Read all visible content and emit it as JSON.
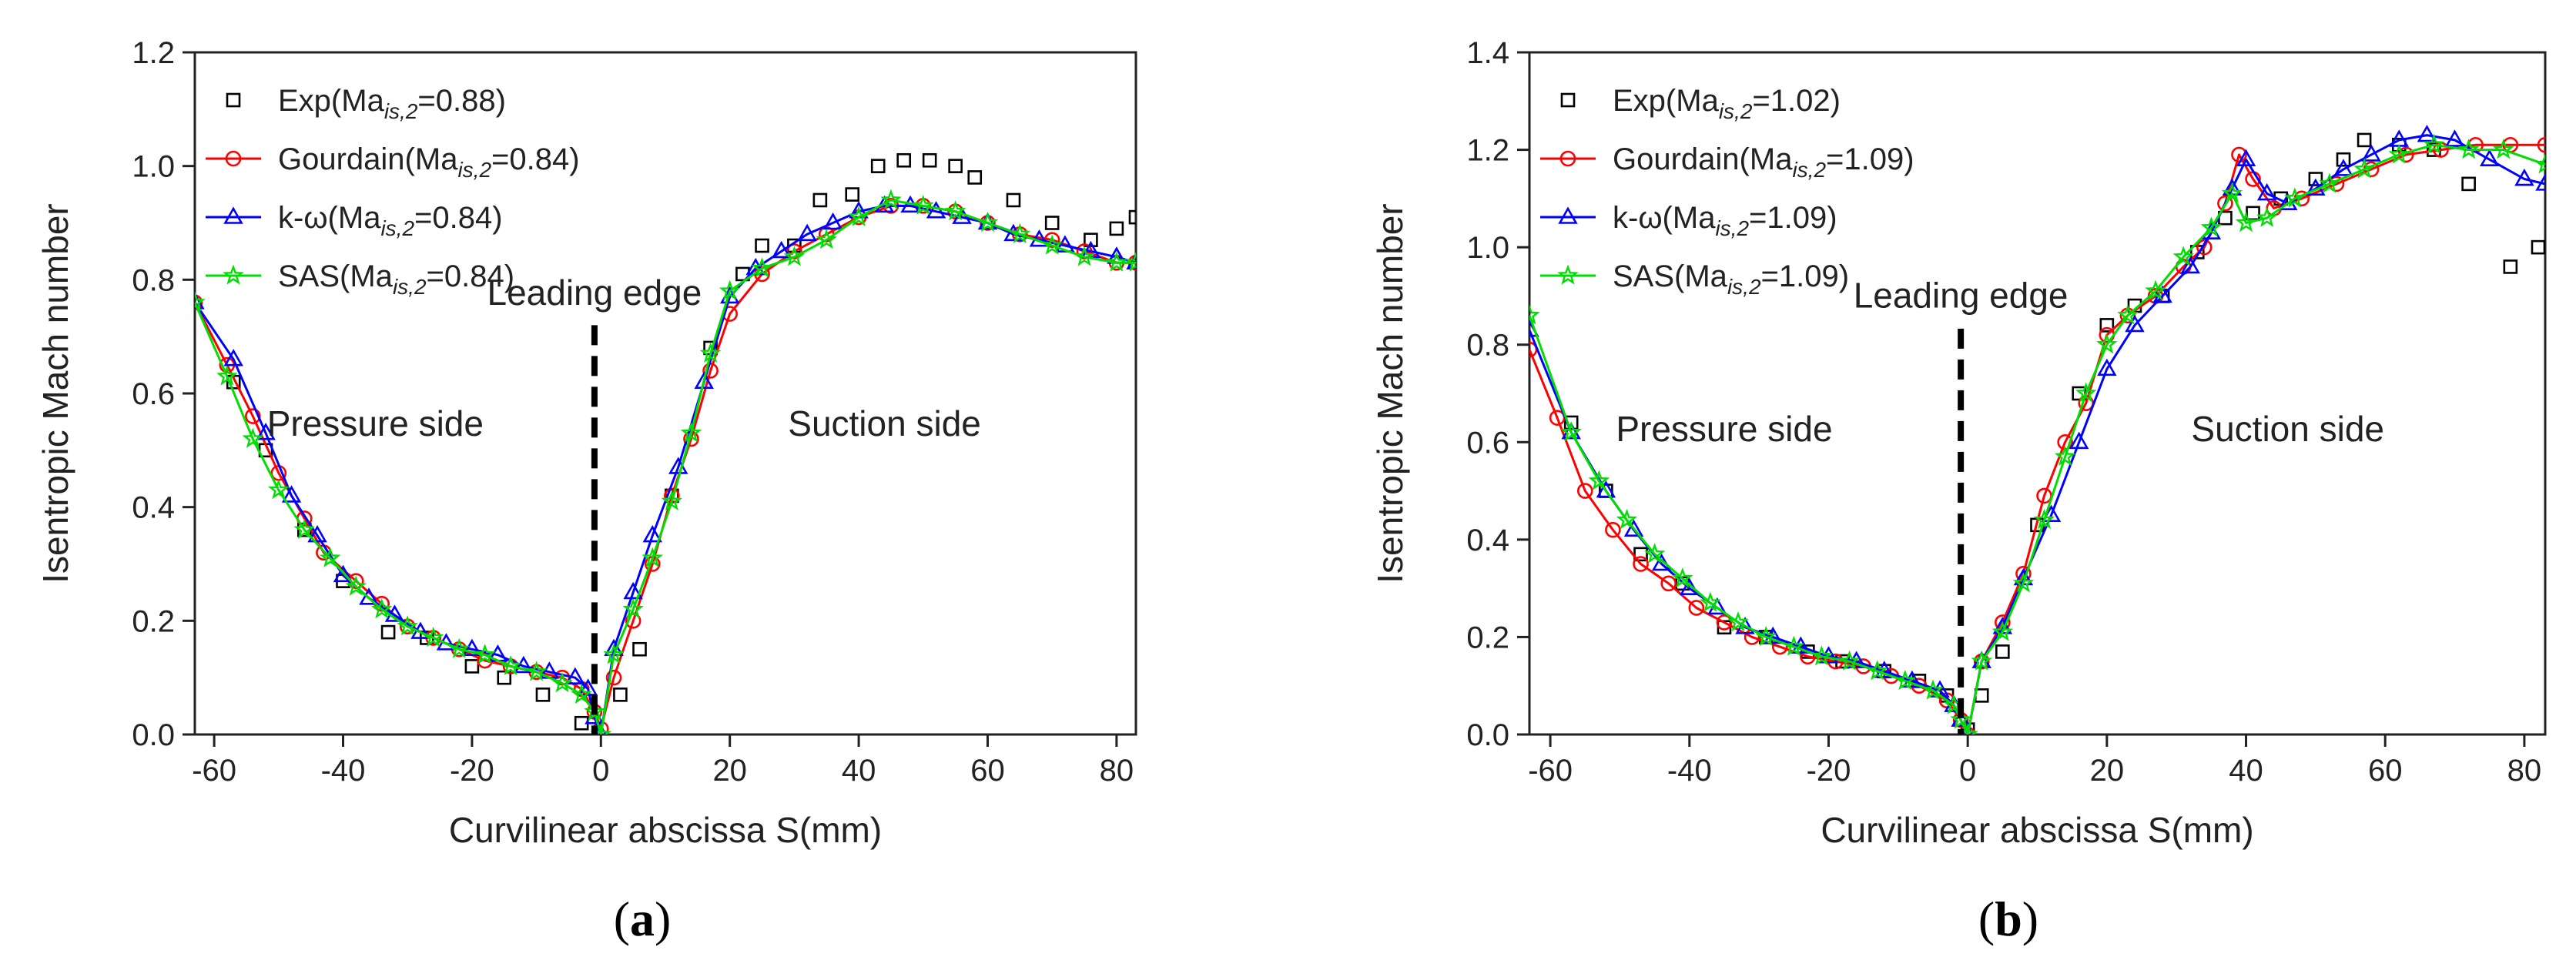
{
  "panels": [
    {
      "caption_letter": "a",
      "xlabel": "Curvilinear abscissa S(mm)",
      "ylabel": "Isentropic Mach number",
      "annotations": {
        "leading_edge": "Leading edge",
        "pressure_side": "Pressure side",
        "suction_side": "Suction side"
      },
      "legend": [
        {
          "base": "Exp(Ma",
          "sub": "is,2",
          "tail": "=0.88)"
        },
        {
          "base": "Gourdain(Ma",
          "sub": "is,2",
          "tail": "=0.84)"
        },
        {
          "base": "k-ω(Ma",
          "sub": "is,2",
          "tail": "=0.84)"
        },
        {
          "base": "SAS(Ma",
          "sub": "is,2",
          "tail": "=0.84)"
        }
      ]
    },
    {
      "caption_letter": "b",
      "xlabel": "Curvilinear abscissa S(mm)",
      "ylabel": "Isentropic Mach number",
      "annotations": {
        "leading_edge": "Leading edge",
        "pressure_side": "Pressure side",
        "suction_side": "Suction side"
      },
      "legend": [
        {
          "base": "Exp(Ma",
          "sub": "is,2",
          "tail": "=1.02)"
        },
        {
          "base": "Gourdain(Ma",
          "sub": "is,2",
          "tail": "=1.09)"
        },
        {
          "base": "k-ω(Ma",
          "sub": "is,2",
          "tail": "=1.09)"
        },
        {
          "base": "SAS(Ma",
          "sub": "is,2",
          "tail": "=1.09)"
        }
      ]
    }
  ],
  "chart_data": [
    {
      "type": "line",
      "xlabel": "Curvilinear abscissa S(mm)",
      "ylabel": "Isentropic Mach number",
      "xlim": [
        -63,
        83
      ],
      "ylim": [
        0.0,
        1.2
      ],
      "xticks": [
        -60,
        -40,
        -20,
        0,
        20,
        40,
        60,
        80
      ],
      "yticks": [
        0.0,
        0.2,
        0.4,
        0.6,
        0.8,
        1.0,
        1.2
      ],
      "legend_position": "top-left",
      "leading_edge_x": -1,
      "series": [
        {
          "name": "Exp(Ma is,2=0.88)",
          "style": "markers",
          "marker": "square",
          "color": "#000000",
          "x": [
            -57,
            -52,
            -46,
            -40,
            -33,
            -27,
            -20,
            -15,
            -9,
            -3,
            3,
            6,
            11,
            17,
            22,
            25,
            30,
            34,
            39,
            43,
            47,
            51,
            55,
            58,
            64,
            70,
            76,
            80,
            83
          ],
          "y": [
            0.62,
            0.5,
            0.36,
            0.27,
            0.18,
            0.17,
            0.12,
            0.1,
            0.07,
            0.02,
            0.07,
            0.15,
            0.42,
            0.68,
            0.81,
            0.86,
            0.86,
            0.94,
            0.95,
            1.0,
            1.01,
            1.01,
            1.0,
            0.98,
            0.94,
            0.9,
            0.87,
            0.89,
            0.91
          ]
        },
        {
          "name": "Gourdain(Ma is,2=0.84)",
          "style": "line+markers",
          "marker": "circle",
          "color": "#ff0000",
          "x": [
            -63,
            -58,
            -54,
            -50,
            -46,
            -43,
            -38,
            -34,
            -30,
            -26,
            -22,
            -18,
            -14,
            -10,
            -6,
            -3,
            -1,
            0,
            2,
            5,
            8,
            11,
            14,
            17,
            20,
            25,
            30,
            35,
            40,
            45,
            50,
            55,
            60,
            65,
            70,
            75,
            80,
            83
          ],
          "y": [
            0.76,
            0.65,
            0.56,
            0.46,
            0.38,
            0.32,
            0.27,
            0.23,
            0.19,
            0.17,
            0.15,
            0.13,
            0.12,
            0.11,
            0.1,
            0.08,
            0.04,
            0.01,
            0.1,
            0.2,
            0.3,
            0.42,
            0.52,
            0.64,
            0.74,
            0.81,
            0.85,
            0.88,
            0.91,
            0.93,
            0.93,
            0.92,
            0.9,
            0.88,
            0.87,
            0.85,
            0.83,
            0.83
          ]
        },
        {
          "name": "k-ω(Ma is,2=0.84)",
          "style": "line+markers",
          "marker": "triangle",
          "color": "#0000ff",
          "x": [
            -63,
            -57,
            -52,
            -48,
            -44,
            -40,
            -36,
            -32,
            -28,
            -24,
            -20,
            -16,
            -12,
            -8,
            -4,
            -2,
            -1,
            0,
            2,
            5,
            8,
            12,
            16,
            20,
            24,
            28,
            32,
            36,
            40,
            44,
            48,
            52,
            56,
            60,
            64,
            68,
            72,
            76,
            80,
            83
          ],
          "y": [
            0.76,
            0.66,
            0.53,
            0.42,
            0.35,
            0.28,
            0.24,
            0.21,
            0.18,
            0.16,
            0.15,
            0.14,
            0.12,
            0.11,
            0.1,
            0.08,
            0.03,
            0.0,
            0.15,
            0.25,
            0.35,
            0.47,
            0.62,
            0.77,
            0.82,
            0.85,
            0.88,
            0.9,
            0.92,
            0.93,
            0.93,
            0.92,
            0.91,
            0.9,
            0.88,
            0.87,
            0.86,
            0.85,
            0.84,
            0.83
          ]
        },
        {
          "name": "SAS(Ma is,2=0.84)",
          "style": "line+markers",
          "marker": "star",
          "color": "#00dd00",
          "x": [
            -63,
            -58,
            -54,
            -50,
            -46,
            -42,
            -38,
            -34,
            -30,
            -26,
            -22,
            -18,
            -14,
            -10,
            -6,
            -3,
            -1,
            0,
            2,
            5,
            8,
            11,
            14,
            17,
            20,
            25,
            30,
            35,
            40,
            45,
            50,
            55,
            60,
            65,
            70,
            75,
            80,
            83
          ],
          "y": [
            0.76,
            0.63,
            0.52,
            0.43,
            0.36,
            0.31,
            0.26,
            0.22,
            0.19,
            0.17,
            0.15,
            0.14,
            0.12,
            0.11,
            0.09,
            0.07,
            0.04,
            0.0,
            0.14,
            0.22,
            0.31,
            0.41,
            0.53,
            0.67,
            0.78,
            0.82,
            0.84,
            0.87,
            0.91,
            0.94,
            0.93,
            0.92,
            0.9,
            0.88,
            0.86,
            0.84,
            0.83,
            0.83
          ]
        }
      ]
    },
    {
      "type": "line",
      "xlabel": "Curvilinear abscissa S(mm)",
      "ylabel": "Isentropic Mach number",
      "xlim": [
        -63,
        83
      ],
      "ylim": [
        0.0,
        1.4
      ],
      "xticks": [
        -60,
        -40,
        -20,
        0,
        20,
        40,
        60,
        80
      ],
      "yticks": [
        0.0,
        0.2,
        0.4,
        0.6,
        0.8,
        1.0,
        1.2,
        1.4
      ],
      "legend_position": "top-left",
      "leading_edge_x": -1,
      "series": [
        {
          "name": "Exp(Ma is,2=1.02)",
          "style": "markers",
          "marker": "square",
          "color": "#000000",
          "x": [
            -57,
            -52,
            -47,
            -41,
            -35,
            -29,
            -23,
            -18,
            -12,
            -7,
            -3,
            0,
            2,
            5,
            10,
            16,
            20,
            24,
            28,
            33,
            37,
            41,
            45,
            50,
            54,
            57,
            62,
            67,
            72,
            78,
            82
          ],
          "y": [
            0.64,
            0.5,
            0.37,
            0.31,
            0.22,
            0.2,
            0.17,
            0.15,
            0.13,
            0.11,
            0.08,
            0.01,
            0.08,
            0.17,
            0.43,
            0.7,
            0.84,
            0.88,
            0.9,
            0.99,
            1.06,
            1.07,
            1.1,
            1.14,
            1.18,
            1.22,
            1.21,
            1.2,
            1.13,
            0.96,
            1.0
          ]
        },
        {
          "name": "Gourdain(Ma is,2=1.09)",
          "style": "line+markers",
          "marker": "circle",
          "color": "#ff0000",
          "x": [
            -63,
            -59,
            -55,
            -51,
            -47,
            -43,
            -39,
            -35,
            -31,
            -27,
            -23,
            -19,
            -15,
            -11,
            -7,
            -3,
            -1,
            0,
            2,
            5,
            8,
            11,
            14,
            17,
            20,
            23,
            27,
            31,
            34,
            37,
            39,
            41,
            44,
            48,
            53,
            58,
            63,
            68,
            73,
            78,
            83
          ],
          "y": [
            0.79,
            0.65,
            0.5,
            0.42,
            0.35,
            0.31,
            0.26,
            0.23,
            0.2,
            0.18,
            0.16,
            0.15,
            0.14,
            0.12,
            0.1,
            0.07,
            0.03,
            0.0,
            0.15,
            0.23,
            0.33,
            0.49,
            0.6,
            0.68,
            0.82,
            0.86,
            0.9,
            0.96,
            1.0,
            1.09,
            1.19,
            1.14,
            1.08,
            1.1,
            1.13,
            1.16,
            1.19,
            1.2,
            1.21,
            1.21,
            1.21
          ]
        },
        {
          "name": "k-ω(Ma is,2=1.09)",
          "style": "line+markers",
          "marker": "triangle",
          "color": "#0000ff",
          "x": [
            -63,
            -57,
            -52,
            -48,
            -44,
            -40,
            -36,
            -32,
            -28,
            -24,
            -20,
            -16,
            -12,
            -8,
            -4,
            -2,
            -1,
            0,
            2,
            5,
            8,
            12,
            16,
            20,
            24,
            28,
            32,
            35,
            38,
            40,
            43,
            46,
            50,
            54,
            58,
            62,
            66,
            70,
            75,
            80,
            83
          ],
          "y": [
            0.83,
            0.62,
            0.5,
            0.42,
            0.35,
            0.3,
            0.26,
            0.22,
            0.2,
            0.18,
            0.16,
            0.15,
            0.13,
            0.11,
            0.09,
            0.06,
            0.03,
            0.0,
            0.15,
            0.22,
            0.32,
            0.45,
            0.6,
            0.75,
            0.84,
            0.9,
            0.96,
            1.03,
            1.12,
            1.18,
            1.11,
            1.09,
            1.12,
            1.16,
            1.19,
            1.22,
            1.23,
            1.22,
            1.18,
            1.14,
            1.13
          ]
        },
        {
          "name": "SAS(Ma is,2=1.09)",
          "style": "line+markers",
          "marker": "star",
          "color": "#00dd00",
          "x": [
            -63,
            -57,
            -53,
            -49,
            -45,
            -41,
            -37,
            -33,
            -29,
            -25,
            -21,
            -17,
            -13,
            -9,
            -5,
            -2,
            -1,
            0,
            2,
            5,
            8,
            11,
            14,
            17,
            20,
            23,
            27,
            31,
            35,
            38,
            40,
            43,
            47,
            52,
            57,
            62,
            67,
            72,
            77,
            83
          ],
          "y": [
            0.86,
            0.62,
            0.52,
            0.44,
            0.37,
            0.32,
            0.27,
            0.23,
            0.2,
            0.18,
            0.16,
            0.15,
            0.13,
            0.11,
            0.09,
            0.06,
            0.03,
            0.0,
            0.15,
            0.21,
            0.31,
            0.44,
            0.57,
            0.7,
            0.8,
            0.86,
            0.91,
            0.98,
            1.04,
            1.11,
            1.05,
            1.06,
            1.1,
            1.13,
            1.16,
            1.19,
            1.21,
            1.2,
            1.2,
            1.17
          ]
        }
      ]
    }
  ]
}
